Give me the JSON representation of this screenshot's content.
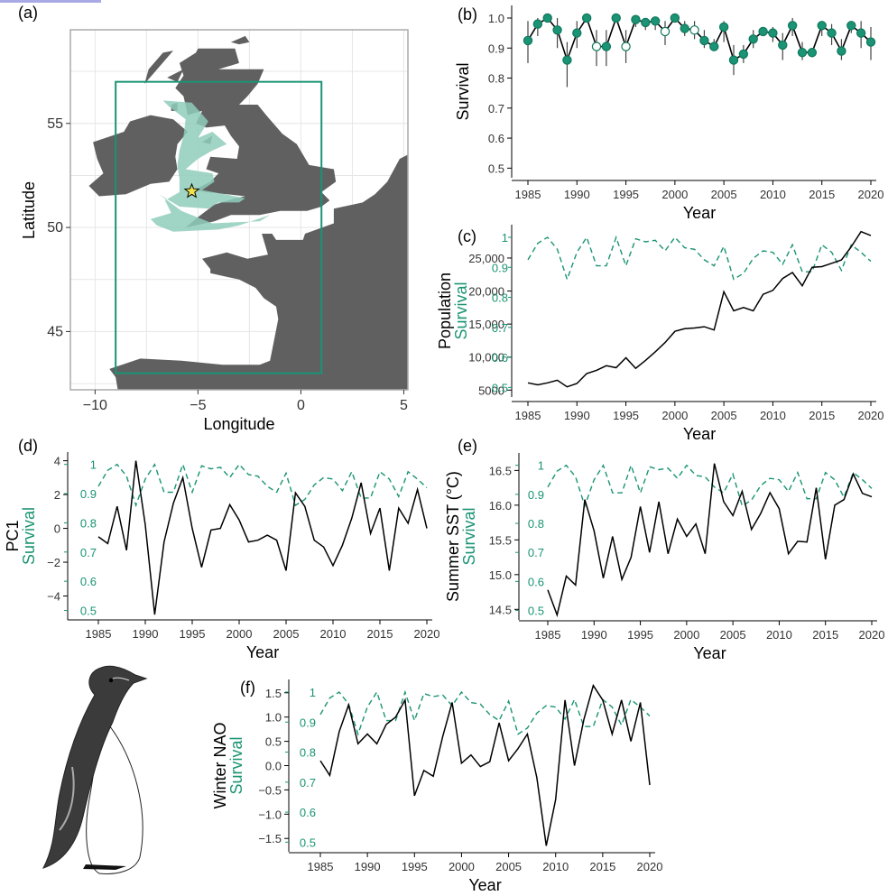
{
  "colors": {
    "green": "#1a9474",
    "green_dark": "#11775c",
    "land": "#606060",
    "sea_area": "#8fcdbb",
    "frame": "#aaaaaa",
    "grid": "#e6e6e6",
    "star": "#f2e34d"
  },
  "labels": {
    "a": "(a)",
    "b": "(b)",
    "c": "(c)",
    "d": "(d)",
    "e": "(e)",
    "f": "(f)",
    "year": "Year",
    "survival": "Survival",
    "latitude": "Latitude",
    "longitude": "Longitude",
    "population": "Population",
    "pc1": "PC1",
    "sst": "Summer SST (°C)",
    "nao": "Winter NAO"
  },
  "year_ticks": [
    1985,
    1990,
    1995,
    2000,
    2005,
    2010,
    2015,
    2020
  ],
  "chart_data": [
    {
      "id": "a",
      "type": "map",
      "xlabel": "Longitude",
      "ylabel": "Latitude",
      "xticks": [
        -10,
        -5,
        0,
        5
      ],
      "yticks": [
        45,
        50,
        55
      ],
      "xlim": [
        -11.2,
        5.2
      ],
      "ylim": [
        42.2,
        59.5
      ],
      "study_box": {
        "lon": [
          -9,
          1
        ],
        "lat": [
          43,
          57
        ]
      },
      "colony_marker": "star-icon"
    },
    {
      "id": "b",
      "type": "scatter",
      "ylabel": "Survival",
      "ylim": [
        0.48,
        1.03
      ],
      "yticks": [
        "0.5",
        "0.6",
        "0.7",
        "0.8",
        "0.9",
        "1.0"
      ],
      "x": [
        1985,
        1986,
        1987,
        1988,
        1989,
        1990,
        1991,
        1992,
        1993,
        1994,
        1995,
        1996,
        1997,
        1998,
        1999,
        2000,
        2001,
        2002,
        2003,
        2004,
        2005,
        2006,
        2007,
        2008,
        2009,
        2010,
        2011,
        2012,
        2013,
        2014,
        2015,
        2016,
        2017,
        2018,
        2019,
        2020
      ],
      "values": [
        0.925,
        0.98,
        1.0,
        0.96,
        0.86,
        0.95,
        1.0,
        0.905,
        0.905,
        1.0,
        0.905,
        0.995,
        0.985,
        0.99,
        0.955,
        1.0,
        0.965,
        0.96,
        0.925,
        0.905,
        0.97,
        0.86,
        0.88,
        0.93,
        0.955,
        0.95,
        0.91,
        0.975,
        0.885,
        0.885,
        0.975,
        0.95,
        0.89,
        0.975,
        0.95,
        0.92
      ],
      "lower": [
        0.85,
        0.94,
        0.99,
        0.9,
        0.77,
        0.9,
        0.99,
        0.84,
        0.84,
        0.99,
        0.85,
        0.97,
        0.96,
        0.96,
        0.91,
        0.99,
        0.94,
        0.93,
        0.9,
        0.89,
        0.92,
        0.81,
        0.85,
        0.9,
        0.94,
        0.92,
        0.86,
        0.94,
        0.86,
        0.87,
        0.94,
        0.91,
        0.86,
        0.95,
        0.9,
        0.86
      ],
      "upper": [
        0.99,
        1.0,
        1.0,
        1.0,
        0.92,
        0.99,
        1.0,
        0.96,
        0.96,
        1.0,
        0.96,
        1.0,
        1.0,
        1.0,
        0.99,
        1.0,
        0.99,
        0.99,
        0.96,
        0.93,
        0.99,
        0.91,
        0.91,
        0.96,
        0.97,
        0.97,
        0.95,
        1.0,
        0.92,
        0.9,
        0.99,
        0.98,
        0.93,
        0.99,
        0.99,
        0.97
      ],
      "open_points": [
        1992,
        1995,
        1999,
        2002
      ]
    },
    {
      "id": "c",
      "type": "line",
      "ylabel": "Population",
      "y2label": "Survival",
      "ylim": [
        4500,
        29500
      ],
      "yticks": [
        "5000",
        "10,000",
        "15,000",
        "20,000",
        "25,000"
      ],
      "y2ticks": [
        "0.5",
        "0.6",
        "0.7",
        "0.8",
        "0.9",
        "1"
      ],
      "series": [
        {
          "values": [
            6100,
            5800,
            6100,
            6500,
            5500,
            6000,
            7500,
            8000,
            8700,
            8400,
            9900,
            8300,
            9500,
            10800,
            12200,
            13900,
            14300,
            14400,
            14600,
            14100,
            19900,
            17000,
            17500,
            17000,
            19500,
            20100,
            21900,
            22800,
            20800,
            23600,
            23700,
            24200,
            24700,
            26700,
            29000,
            28400
          ]
        },
        {
          "values": [
            0.925,
            0.98,
            1.0,
            0.96,
            0.86,
            0.95,
            1.0,
            0.905,
            0.905,
            1.0,
            0.905,
            0.995,
            0.985,
            0.99,
            0.955,
            1.0,
            0.965,
            0.96,
            0.925,
            0.905,
            0.97,
            0.86,
            0.88,
            0.93,
            0.955,
            0.95,
            0.91,
            0.975,
            0.885,
            0.885,
            0.975,
            0.95,
            0.89,
            0.975,
            0.95,
            0.92
          ]
        }
      ]
    },
    {
      "id": "d",
      "type": "line",
      "ylabel": "PC1",
      "y2label": "Survival",
      "ylim": [
        -5.2,
        4.3
      ],
      "yticks": [
        "-4",
        "-2",
        "0",
        "2",
        "4"
      ],
      "y2ticks": [
        "0.5",
        "0.6",
        "0.7",
        "0.8",
        "0.9",
        "1"
      ],
      "series": [
        {
          "values": [
            -0.5,
            -0.9,
            1.3,
            -1.3,
            4.0,
            0.2,
            -5.1,
            -0.8,
            1.5,
            3.0,
            0.0,
            -2.3,
            -0.1,
            0.0,
            1.4,
            0.5,
            -0.8,
            -0.7,
            -0.4,
            -0.7,
            -2.5,
            2.1,
            1.3,
            -0.7,
            -1.1,
            -2.2,
            -1.0,
            0.6,
            2.7,
            -0.3,
            1.2,
            -2.5,
            1.2,
            0.3,
            2.3,
            0.0
          ]
        },
        {
          "values": [
            0.925,
            0.98,
            1.0,
            0.96,
            0.86,
            0.95,
            1.0,
            0.905,
            0.905,
            1.0,
            0.905,
            0.995,
            0.985,
            0.99,
            0.955,
            1.0,
            0.965,
            0.96,
            0.925,
            0.905,
            0.97,
            0.86,
            0.88,
            0.93,
            0.955,
            0.95,
            0.91,
            0.975,
            0.885,
            0.885,
            0.975,
            0.95,
            0.89,
            0.975,
            0.95,
            0.92
          ]
        }
      ]
    },
    {
      "id": "e",
      "type": "line",
      "ylabel": "Summer SST (°C)",
      "y2label": "Survival",
      "ylim": [
        14.4,
        16.7
      ],
      "yticks": [
        "14.5",
        "15.0",
        "15.5",
        "16.0",
        "16.5"
      ],
      "y2ticks": [
        "0.5",
        "0.6",
        "0.7",
        "0.8",
        "0.9",
        "1"
      ],
      "series": [
        {
          "values": [
            14.78,
            14.42,
            14.98,
            14.85,
            16.08,
            15.63,
            14.95,
            15.55,
            14.93,
            15.25,
            15.98,
            15.32,
            16.05,
            15.3,
            15.8,
            15.55,
            15.73,
            15.3,
            16.6,
            16.05,
            15.85,
            16.2,
            15.65,
            15.88,
            16.18,
            15.95,
            15.3,
            15.48,
            15.47,
            16.25,
            15.22,
            16.0,
            16.08,
            16.45,
            16.17,
            16.12
          ]
        },
        {
          "values": [
            0.925,
            0.98,
            1.0,
            0.96,
            0.86,
            0.95,
            1.0,
            0.905,
            0.905,
            1.0,
            0.905,
            0.995,
            0.985,
            0.99,
            0.955,
            1.0,
            0.965,
            0.96,
            0.925,
            0.905,
            0.97,
            0.86,
            0.88,
            0.93,
            0.955,
            0.95,
            0.91,
            0.975,
            0.885,
            0.885,
            0.975,
            0.95,
            0.89,
            0.975,
            0.95,
            0.92
          ]
        }
      ]
    },
    {
      "id": "f",
      "type": "line",
      "ylabel": "Winter NAO",
      "y2label": "Survival",
      "ylim": [
        -1.7,
        1.7
      ],
      "yticks": [
        "-1.5",
        "-1.0",
        "-0.5",
        "0.0",
        "0.5",
        "1.0",
        "1.5"
      ],
      "y2ticks": [
        "0.5",
        "0.6",
        "0.7",
        "0.8",
        "0.9",
        "1"
      ],
      "series": [
        {
          "values": [
            0.1,
            -0.2,
            0.7,
            1.25,
            0.45,
            0.65,
            0.45,
            0.85,
            1.0,
            1.35,
            -0.62,
            -0.1,
            -0.22,
            0.6,
            1.3,
            0.05,
            0.22,
            -0.02,
            0.08,
            0.88,
            0.1,
            0.35,
            0.65,
            -0.25,
            -1.65,
            -0.7,
            1.35,
            0.0,
            0.95,
            1.65,
            1.35,
            0.65,
            1.35,
            0.5,
            1.3,
            -0.4
          ]
        },
        {
          "values": [
            0.925,
            0.98,
            1.0,
            0.96,
            0.86,
            0.95,
            1.0,
            0.905,
            0.905,
            1.0,
            0.905,
            0.995,
            0.985,
            0.99,
            0.955,
            1.0,
            0.965,
            0.96,
            0.925,
            0.905,
            0.97,
            0.86,
            0.88,
            0.93,
            0.955,
            0.95,
            0.91,
            0.975,
            0.885,
            0.885,
            0.975,
            0.95,
            0.89,
            0.975,
            0.95,
            0.92
          ]
        }
      ]
    }
  ]
}
